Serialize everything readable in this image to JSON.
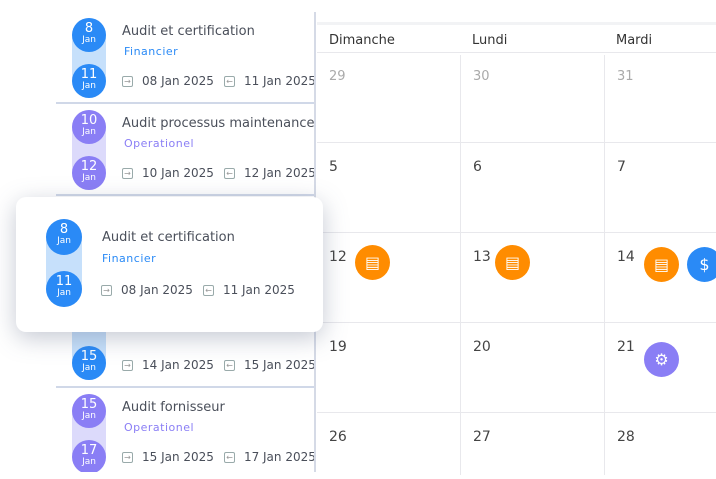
{
  "colors": {
    "financier": "#2a8af6",
    "operationel": "#8a7ef5",
    "track_fin": "#c6e0fb",
    "track_op": "#dcdafb",
    "orange": "#ff8c00"
  },
  "list": [
    {
      "start_day": "8",
      "start_month": "Jan",
      "end_day": "11",
      "end_month": "Jan",
      "title": "Audit  et certification",
      "category": "Financier",
      "start_date": "08 Jan 2025",
      "end_date": "11 Jan 2025"
    },
    {
      "start_day": "10",
      "start_month": "Jan",
      "end_day": "12",
      "end_month": "Jan",
      "title": "Audit processus maintenance",
      "category": "Operationel",
      "start_date": "10 Jan 2025",
      "end_date": "12 Jan 2025"
    },
    {
      "end_day": "15",
      "end_month": "Jan",
      "start_date": "14 Jan 2025",
      "end_date": "15 Jan 2025"
    },
    {
      "start_day": "15",
      "start_month": "Jan",
      "end_day": "17",
      "end_month": "Jan",
      "title": "Audit fornisseur",
      "category": "Operationel",
      "start_date": "15 Jan 2025",
      "end_date": "17 Jan 2025"
    }
  ],
  "drag_card": {
    "start_day": "8",
    "start_month": "Jan",
    "end_day": "11",
    "end_month": "Jan",
    "title": "Audit  et certification",
    "category": "Financier",
    "start_date": "08 Jan 2025",
    "end_date": "11 Jan 2025"
  },
  "calendar": {
    "headers": [
      "Dimanche",
      "Lundi",
      "Mardi"
    ],
    "weeks": [
      [
        "29",
        "30",
        "31"
      ],
      [
        "5",
        "6",
        "7"
      ],
      [
        "12",
        "13",
        "14"
      ],
      [
        "19",
        "20",
        "21"
      ],
      [
        "26",
        "27",
        "28"
      ]
    ],
    "events": [
      {
        "icon": "audit-lock-shield-icon",
        "color": "orange"
      },
      {
        "icon": "audit-lock-shield-icon",
        "color": "orange"
      },
      {
        "icon": "audit-lock-shield-icon",
        "color": "orange"
      },
      {
        "icon": "money-download-icon",
        "color": "blue"
      },
      {
        "icon": "gear-sync-icon",
        "color": "purple"
      }
    ]
  }
}
